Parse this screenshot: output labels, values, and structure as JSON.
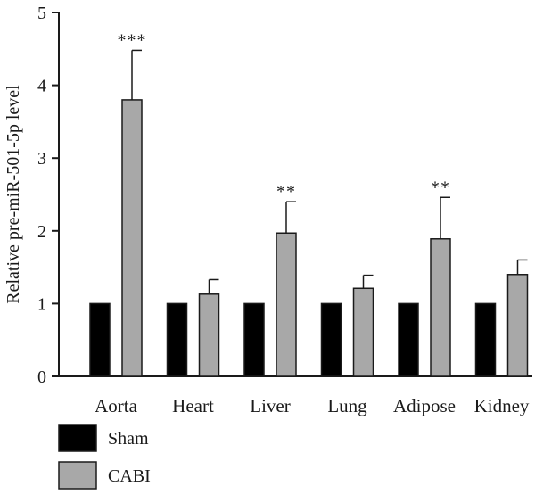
{
  "chart_data": {
    "type": "bar",
    "title": "",
    "xlabel": "",
    "ylabel": "Relative pre-miR-501-5p level",
    "ylim": [
      0,
      5
    ],
    "yticks": [
      0,
      1,
      2,
      3,
      4,
      5
    ],
    "grid": false,
    "legend_position": "bottom-left",
    "categories": [
      "Aorta",
      "Heart",
      "Liver",
      "Lung",
      "Adipose",
      "Kidney"
    ],
    "series": [
      {
        "name": "Sham",
        "color": "#000000",
        "values": [
          1,
          1,
          1,
          1,
          1,
          1
        ],
        "errors": [
          0,
          0,
          0,
          0,
          0,
          0
        ]
      },
      {
        "name": "CABI",
        "color": "#a8a8a8",
        "values": [
          3.8,
          1.13,
          1.97,
          1.21,
          1.89,
          1.4
        ],
        "errors": [
          0.68,
          0.2,
          0.43,
          0.18,
          0.57,
          0.2
        ]
      }
    ],
    "significance": [
      "***",
      "",
      "**",
      "",
      "**",
      ""
    ]
  }
}
